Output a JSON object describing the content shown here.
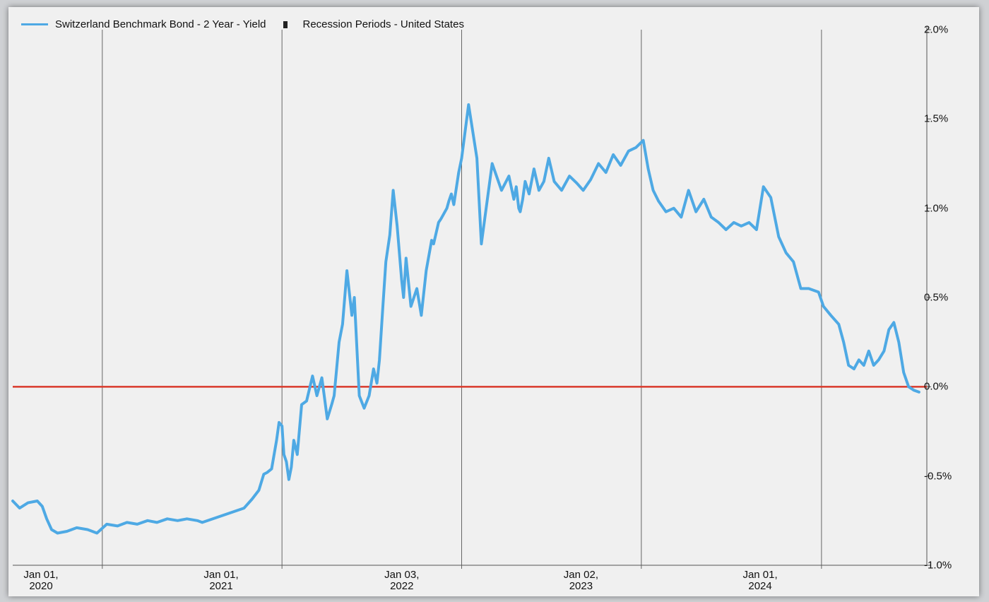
{
  "chart_data": {
    "type": "line",
    "title": "",
    "xlabel": "",
    "ylabel": "",
    "legend": [
      {
        "name": "Switzerland Benchmark Bond - 2 Year - Yield",
        "color": "#4ea9e4",
        "kind": "line"
      },
      {
        "name": "Recession Periods - United States",
        "color": "#222222",
        "kind": "box"
      }
    ],
    "legend_position": "top-left",
    "ylim": [
      -1.0,
      2.0
    ],
    "xlim": [
      "2020-01-01",
      "2025-01-31"
    ],
    "y_ticks": [
      "2.0%",
      "1.5%",
      "1.0%",
      "0.5%",
      "0.0%",
      "-0.5%",
      "-1.0%"
    ],
    "y_tick_values": [
      2.0,
      1.5,
      1.0,
      0.5,
      0.0,
      -0.5,
      -1.0
    ],
    "x_ticks": [
      {
        "line1": "Jan 01,",
        "line2": "2020",
        "date": "2020-01-01"
      },
      {
        "line1": "Jan 01,",
        "line2": "2021",
        "date": "2021-01-01"
      },
      {
        "line1": "Jan 03,",
        "line2": "2022",
        "date": "2022-01-03"
      },
      {
        "line1": "Jan 02,",
        "line2": "2023",
        "date": "2023-01-02"
      },
      {
        "line1": "Jan 01,",
        "line2": "2024",
        "date": "2024-01-01"
      }
    ],
    "gridlines_x": [
      "2020-07-01",
      "2021-07-01",
      "2022-07-01",
      "2023-07-01",
      "2024-07-01"
    ],
    "reference_line": {
      "value": 0.0,
      "color": "#d93a2b"
    },
    "grid": true,
    "series": [
      {
        "name": "Switzerland Benchmark Bond - 2 Year - Yield",
        "color": "#4ea9e4",
        "x": [
          "2020-01-01",
          "2020-01-15",
          "2020-02-01",
          "2020-02-20",
          "2020-03-01",
          "2020-03-10",
          "2020-03-20",
          "2020-04-01",
          "2020-04-20",
          "2020-05-10",
          "2020-06-01",
          "2020-06-20",
          "2020-07-10",
          "2020-08-01",
          "2020-08-20",
          "2020-09-10",
          "2020-10-01",
          "2020-10-20",
          "2020-11-10",
          "2020-12-01",
          "2020-12-20",
          "2021-01-10",
          "2021-01-20",
          "2021-04-15",
          "2021-05-01",
          "2021-05-15",
          "2021-05-25",
          "2021-06-01",
          "2021-06-10",
          "2021-06-20",
          "2021-06-25",
          "2021-07-01",
          "2021-07-05",
          "2021-07-10",
          "2021-07-15",
          "2021-07-20",
          "2021-07-25",
          "2021-08-01",
          "2021-08-10",
          "2021-08-20",
          "2021-09-01",
          "2021-09-10",
          "2021-09-20",
          "2021-10-01",
          "2021-10-10",
          "2021-10-15",
          "2021-10-25",
          "2021-11-01",
          "2021-11-10",
          "2021-11-20",
          "2021-11-25",
          "2021-12-05",
          "2021-12-15",
          "2021-12-25",
          "2022-01-03",
          "2022-01-10",
          "2022-01-15",
          "2022-01-22",
          "2022-01-28",
          "2022-02-05",
          "2022-02-12",
          "2022-02-20",
          "2022-03-01",
          "2022-03-05",
          "2022-03-10",
          "2022-03-20",
          "2022-04-01",
          "2022-04-10",
          "2022-04-20",
          "2022-05-01",
          "2022-05-05",
          "2022-05-15",
          "2022-05-20",
          "2022-06-01",
          "2022-06-05",
          "2022-06-10",
          "2022-06-15",
          "2022-06-25",
          "2022-07-01",
          "2022-07-15",
          "2022-08-01",
          "2022-08-10",
          "2022-09-01",
          "2022-09-20",
          "2022-10-05",
          "2022-10-15",
          "2022-10-20",
          "2022-10-25",
          "2022-10-28",
          "2022-11-02",
          "2022-11-07",
          "2022-11-15",
          "2022-11-25",
          "2022-12-05",
          "2022-12-15",
          "2022-12-25",
          "2023-01-05",
          "2023-01-20",
          "2023-02-05",
          "2023-02-20",
          "2023-03-05",
          "2023-03-20",
          "2023-04-05",
          "2023-04-20",
          "2023-05-05",
          "2023-05-20",
          "2023-06-05",
          "2023-06-20",
          "2023-07-05",
          "2023-07-15",
          "2023-07-25",
          "2023-08-05",
          "2023-08-20",
          "2023-09-05",
          "2023-09-20",
          "2023-10-05",
          "2023-10-20",
          "2023-11-05",
          "2023-11-20",
          "2023-12-05",
          "2023-12-20",
          "2024-01-05",
          "2024-01-20",
          "2024-02-05",
          "2024-02-20",
          "2024-03-05",
          "2024-03-20",
          "2024-04-05",
          "2024-04-20",
          "2024-05-05",
          "2024-05-20",
          "2024-06-05",
          "2024-06-25",
          "2024-07-05",
          "2024-07-20",
          "2024-08-05",
          "2024-08-15",
          "2024-08-25",
          "2024-09-05",
          "2024-09-15",
          "2024-09-25",
          "2024-10-05",
          "2024-10-15",
          "2024-10-25",
          "2024-11-05",
          "2024-11-15",
          "2024-11-25",
          "2024-12-05",
          "2024-12-15",
          "2024-12-25",
          "2025-01-05",
          "2025-01-15"
        ],
        "values": [
          -0.64,
          -0.68,
          -0.65,
          -0.64,
          -0.67,
          -0.74,
          -0.8,
          -0.82,
          -0.81,
          -0.79,
          -0.8,
          -0.82,
          -0.77,
          -0.78,
          -0.76,
          -0.77,
          -0.75,
          -0.76,
          -0.74,
          -0.75,
          -0.74,
          -0.75,
          -0.76,
          -0.68,
          -0.63,
          -0.58,
          -0.49,
          -0.48,
          -0.46,
          -0.3,
          -0.2,
          -0.22,
          -0.38,
          -0.42,
          -0.52,
          -0.45,
          -0.3,
          -0.38,
          -0.1,
          -0.08,
          0.06,
          -0.05,
          0.05,
          -0.18,
          -0.1,
          -0.05,
          0.25,
          0.35,
          0.65,
          0.4,
          0.5,
          -0.05,
          -0.12,
          -0.05,
          0.1,
          0.02,
          0.15,
          0.45,
          0.7,
          0.85,
          1.1,
          0.9,
          0.6,
          0.5,
          0.72,
          0.45,
          0.55,
          0.4,
          0.65,
          0.82,
          0.8,
          0.92,
          0.94,
          1.0,
          1.04,
          1.08,
          1.02,
          1.2,
          1.28,
          1.58,
          1.28,
          0.8,
          1.25,
          1.1,
          1.18,
          1.05,
          1.12,
          1.0,
          0.98,
          1.05,
          1.15,
          1.08,
          1.22,
          1.1,
          1.15,
          1.28,
          1.15,
          1.1,
          1.18,
          1.14,
          1.1,
          1.16,
          1.25,
          1.2,
          1.3,
          1.24,
          1.32,
          1.34,
          1.38,
          1.22,
          1.1,
          1.04,
          0.98,
          1.0,
          0.95,
          1.1,
          0.98,
          1.05,
          0.95,
          0.92,
          0.88,
          0.92,
          0.9,
          0.92,
          0.88,
          1.12,
          1.06,
          0.84,
          0.75,
          0.7,
          0.55,
          0.55,
          0.53,
          0.45,
          0.4,
          0.35,
          0.25,
          0.12,
          0.1,
          0.15,
          0.12,
          0.2,
          0.12,
          0.15,
          0.2,
          0.32,
          0.36,
          0.25,
          0.08,
          0.0,
          -0.02,
          -0.03
        ]
      }
    ]
  }
}
